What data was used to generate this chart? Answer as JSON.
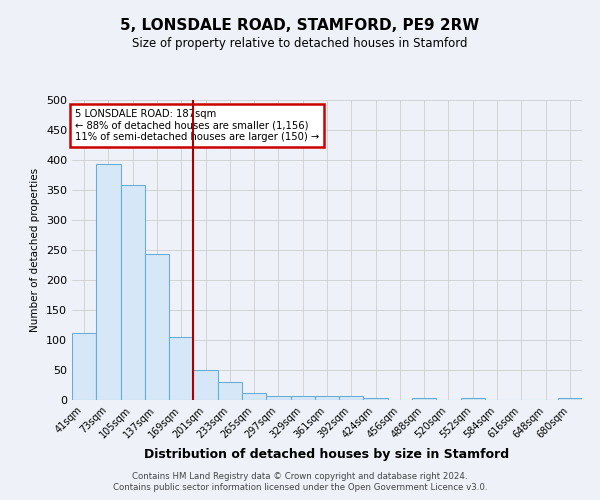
{
  "title1": "5, LONSDALE ROAD, STAMFORD, PE9 2RW",
  "title2": "Size of property relative to detached houses in Stamford",
  "xlabel": "Distribution of detached houses by size in Stamford",
  "ylabel": "Number of detached properties",
  "categories": [
    "41sqm",
    "73sqm",
    "105sqm",
    "137sqm",
    "169sqm",
    "201sqm",
    "233sqm",
    "265sqm",
    "297sqm",
    "329sqm",
    "361sqm",
    "392sqm",
    "424sqm",
    "456sqm",
    "488sqm",
    "520sqm",
    "552sqm",
    "584sqm",
    "616sqm",
    "648sqm",
    "680sqm"
  ],
  "values": [
    111,
    393,
    359,
    243,
    105,
    50,
    30,
    11,
    6,
    6,
    6,
    6,
    3,
    0,
    3,
    0,
    3,
    0,
    0,
    0,
    3
  ],
  "bar_color": "#d6e8f7",
  "bar_edge_color": "#6aadd5",
  "red_line_x": 4.5,
  "annotation_text": "5 LONSDALE ROAD: 187sqm\n← 88% of detached houses are smaller (1,156)\n11% of semi-detached houses are larger (150) →",
  "annotation_box_color": "#ffffff",
  "annotation_box_edge": "#cc0000",
  "ylim": [
    0,
    500
  ],
  "yticks": [
    0,
    50,
    100,
    150,
    200,
    250,
    300,
    350,
    400,
    450,
    500
  ],
  "footer1": "Contains HM Land Registry data © Crown copyright and database right 2024.",
  "footer2": "Contains public sector information licensed under the Open Government Licence v3.0.",
  "bg_color": "#eef2f8",
  "plot_bg_color": "#eef2f8",
  "grid_color": "#c8c8c8"
}
